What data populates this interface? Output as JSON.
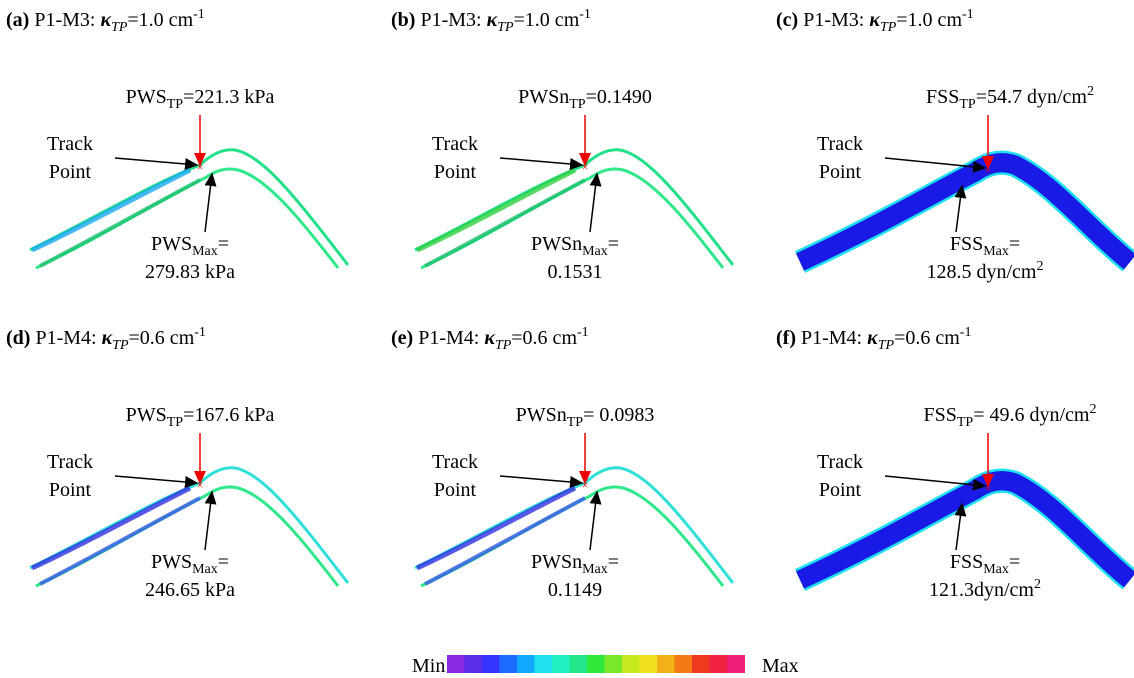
{
  "panels": [
    {
      "letter": "(a)",
      "model": "P1-M3:",
      "kappa": "κ",
      "kappa_sub": "TP",
      "kappa_value": "=1.0 cm",
      "kappa_sup": "-1",
      "tp": {
        "name": "PWS",
        "sub": "TP",
        "text": "=221.3 kPa"
      },
      "track": [
        "Track",
        "Point"
      ],
      "max": {
        "name": "PWS",
        "sub": "Max",
        "eq": "=",
        "value": "279.83 kPa"
      }
    },
    {
      "letter": "(b)",
      "model": "P1-M3:",
      "kappa": "κ",
      "kappa_sub": "TP",
      "kappa_value": "=1.0 cm",
      "kappa_sup": "-1",
      "tp": {
        "name": "PWSn",
        "sub": "TP",
        "text": "=0.1490"
      },
      "track": [
        "Track",
        "Point"
      ],
      "max": {
        "name": "PWSn",
        "sub": "Max",
        "eq": "=",
        "value": "0.1531"
      }
    },
    {
      "letter": "(c)",
      "model": "P1-M3:",
      "kappa": "κ",
      "kappa_sub": "TP",
      "kappa_value": "=1.0 cm",
      "kappa_sup": "-1",
      "tp": {
        "name": "FSS",
        "sub": "TP",
        "text": "=54.7 dyn/cm",
        "sup": "2"
      },
      "track": [
        "Track",
        "Point"
      ],
      "max": {
        "name": "FSS",
        "sub": "Max",
        "eq": "=",
        "value": "128.5 dyn/cm",
        "sup": "2"
      }
    },
    {
      "letter": "(d)",
      "model": "P1-M4:",
      "kappa": "κ",
      "kappa_sub": "TP",
      "kappa_value": "=0.6 cm",
      "kappa_sup": "-1",
      "tp": {
        "name": "PWS",
        "sub": "TP",
        "text": "=167.6 kPa"
      },
      "track": [
        "Track",
        "Point"
      ],
      "max": {
        "name": "PWS",
        "sub": "Max",
        "eq": "=",
        "value": "246.65 kPa"
      }
    },
    {
      "letter": "(e)",
      "model": "P1-M4:",
      "kappa": "κ",
      "kappa_sub": "TP",
      "kappa_value": "=0.6 cm",
      "kappa_sup": "-1",
      "tp": {
        "name": "PWSn",
        "sub": "TP",
        "text": "= 0.0983"
      },
      "track": [
        "Track",
        "Point"
      ],
      "max": {
        "name": "PWSn",
        "sub": "Max",
        "eq": "=",
        "value": "0.1149"
      }
    },
    {
      "letter": "(f)",
      "model": "P1-M4:",
      "kappa": "κ",
      "kappa_sub": "TP",
      "kappa_value": "=0.6 cm",
      "kappa_sup": "-1",
      "tp": {
        "name": "FSS",
        "sub": "TP",
        "text": "= 49.6 dyn/cm",
        "sup": "2"
      },
      "track": [
        "Track",
        "Point"
      ],
      "max": {
        "name": "FSS",
        "sub": "Max",
        "eq": "=",
        "value": "121.3dyn/cm",
        "sup": "2"
      }
    }
  ],
  "colorbar": {
    "min": "Min",
    "max": "Max"
  }
}
